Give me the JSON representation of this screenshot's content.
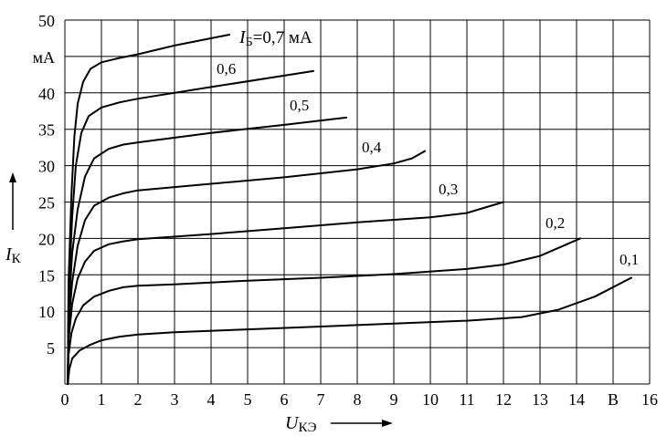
{
  "chart_data": {
    "type": "line",
    "x_axis": {
      "range": [
        0,
        16
      ],
      "ticks": [
        "0",
        "1",
        "2",
        "3",
        "4",
        "5",
        "6",
        "7",
        "8",
        "9",
        "10",
        "11",
        "12",
        "13",
        "14",
        "15",
        "16"
      ],
      "unit_label": "В",
      "unit_replaces_tick": "15",
      "label_main": "U",
      "label_sub": "КЭ"
    },
    "y_axis": {
      "range": [
        0,
        50
      ],
      "ticks": [
        "5",
        "10",
        "15",
        "20",
        "25",
        "30",
        "35",
        "40",
        "45",
        "50"
      ],
      "unit_label": "мА",
      "unit_replaces_tick": "45",
      "label_main": "I",
      "label_sub": "К"
    },
    "grid": true,
    "series": [
      {
        "name": "0,1",
        "label_text": "0,1",
        "points": [
          [
            0.08,
            0
          ],
          [
            0.12,
            2.0
          ],
          [
            0.2,
            3.5
          ],
          [
            0.4,
            4.6
          ],
          [
            0.7,
            5.4
          ],
          [
            1.0,
            6.0
          ],
          [
            1.5,
            6.5
          ],
          [
            2.0,
            6.8
          ],
          [
            3.0,
            7.1
          ],
          [
            5.0,
            7.5
          ],
          [
            7.0,
            7.9
          ],
          [
            9.0,
            8.3
          ],
          [
            11.0,
            8.7
          ],
          [
            12.5,
            9.2
          ],
          [
            13.5,
            10.2
          ],
          [
            14.5,
            12.0
          ],
          [
            15.5,
            14.6
          ]
        ]
      },
      {
        "name": "0,2",
        "label_text": "0,2",
        "points": [
          [
            0.08,
            0
          ],
          [
            0.1,
            4.0
          ],
          [
            0.18,
            7.0
          ],
          [
            0.3,
            9.0
          ],
          [
            0.5,
            10.8
          ],
          [
            0.8,
            12.0
          ],
          [
            1.2,
            12.8
          ],
          [
            1.6,
            13.3
          ],
          [
            2.0,
            13.5
          ],
          [
            3.0,
            13.7
          ],
          [
            5.0,
            14.2
          ],
          [
            7.0,
            14.6
          ],
          [
            9.0,
            15.1
          ],
          [
            11.0,
            15.8
          ],
          [
            12.0,
            16.4
          ],
          [
            13.0,
            17.6
          ],
          [
            14.1,
            20.0
          ]
        ]
      },
      {
        "name": "0,3",
        "label_text": "0,3",
        "points": [
          [
            0.08,
            0
          ],
          [
            0.1,
            6.0
          ],
          [
            0.2,
            11.0
          ],
          [
            0.35,
            14.5
          ],
          [
            0.55,
            16.8
          ],
          [
            0.8,
            18.3
          ],
          [
            1.2,
            19.2
          ],
          [
            1.6,
            19.6
          ],
          [
            2.0,
            19.9
          ],
          [
            4.0,
            20.6
          ],
          [
            6.0,
            21.4
          ],
          [
            8.0,
            22.2
          ],
          [
            10.0,
            22.9
          ],
          [
            11.0,
            23.5
          ],
          [
            12.0,
            25.0
          ]
        ]
      },
      {
        "name": "0,4",
        "label_text": "0,4",
        "points": [
          [
            0.08,
            0
          ],
          [
            0.1,
            8.0
          ],
          [
            0.2,
            14.0
          ],
          [
            0.35,
            19.0
          ],
          [
            0.55,
            22.5
          ],
          [
            0.8,
            24.5
          ],
          [
            1.2,
            25.6
          ],
          [
            1.6,
            26.2
          ],
          [
            2.0,
            26.6
          ],
          [
            4.0,
            27.5
          ],
          [
            6.0,
            28.4
          ],
          [
            8.0,
            29.5
          ],
          [
            9.0,
            30.3
          ],
          [
            9.5,
            31.0
          ],
          [
            9.85,
            32.0
          ]
        ]
      },
      {
        "name": "0,5",
        "label_text": "0,5",
        "points": [
          [
            0.08,
            0
          ],
          [
            0.1,
            10.0
          ],
          [
            0.2,
            18.0
          ],
          [
            0.35,
            24.0
          ],
          [
            0.55,
            28.5
          ],
          [
            0.8,
            31.0
          ],
          [
            1.2,
            32.3
          ],
          [
            1.6,
            32.9
          ],
          [
            2.0,
            33.2
          ],
          [
            4.0,
            34.5
          ],
          [
            6.0,
            35.6
          ],
          [
            7.7,
            36.6
          ]
        ]
      },
      {
        "name": "0,6",
        "label_text": "0,6",
        "points": [
          [
            0.08,
            0
          ],
          [
            0.1,
            12.0
          ],
          [
            0.2,
            23.0
          ],
          [
            0.3,
            30.0
          ],
          [
            0.45,
            34.5
          ],
          [
            0.65,
            36.8
          ],
          [
            1.0,
            38.0
          ],
          [
            1.5,
            38.7
          ],
          [
            2.0,
            39.2
          ],
          [
            4.0,
            40.8
          ],
          [
            6.8,
            43.0
          ]
        ]
      },
      {
        "name": "0,7",
        "label_text": "=0,7 мА",
        "label_main": "I",
        "label_sub": "Б",
        "points": [
          [
            0.08,
            0
          ],
          [
            0.1,
            14.0
          ],
          [
            0.18,
            26.0
          ],
          [
            0.26,
            34.0
          ],
          [
            0.35,
            38.5
          ],
          [
            0.5,
            41.5
          ],
          [
            0.7,
            43.3
          ],
          [
            1.0,
            44.2
          ],
          [
            1.5,
            44.8
          ],
          [
            2.0,
            45.3
          ],
          [
            3.0,
            46.5
          ],
          [
            4.5,
            48.0
          ]
        ]
      }
    ]
  }
}
